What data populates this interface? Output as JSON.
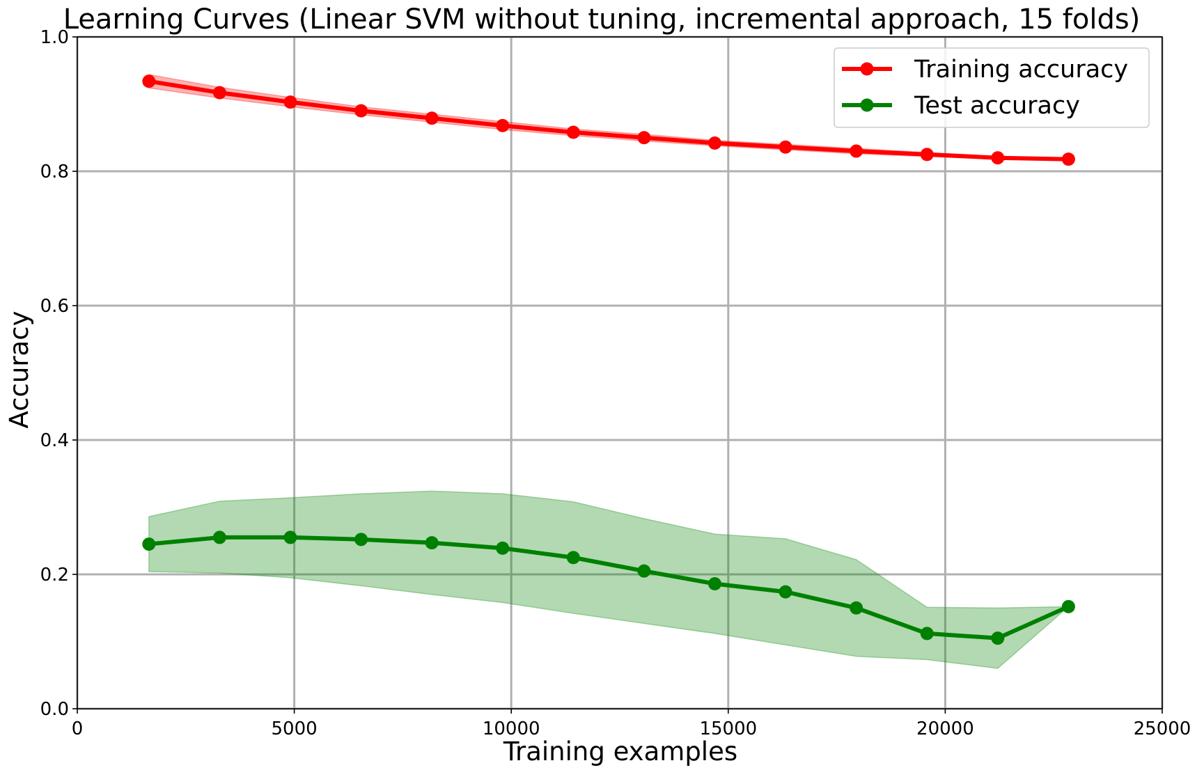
{
  "chart_data": {
    "type": "line",
    "title": "Learning Curves (Linear SVM without tuning, incremental approach, 15 folds)",
    "xlabel": "Training examples",
    "ylabel": "Accuracy",
    "xlim": [
      0,
      25000
    ],
    "ylim": [
      0.0,
      1.0
    ],
    "xticks": [
      0,
      5000,
      10000,
      15000,
      20000,
      25000
    ],
    "yticks": [
      0.0,
      0.2,
      0.4,
      0.6,
      0.8,
      1.0
    ],
    "xtick_labels": [
      "0",
      "5000",
      "10000",
      "15000",
      "20000",
      "25000"
    ],
    "ytick_labels": [
      "0.0",
      "0.2",
      "0.4",
      "0.6",
      "0.8",
      "1.0"
    ],
    "grid": true,
    "legend_position": "top-right",
    "x": [
      1650,
      3280,
      4910,
      6540,
      8170,
      9800,
      11430,
      13060,
      14690,
      16320,
      17950,
      19580,
      21210,
      22840
    ],
    "series": [
      {
        "name": "Training accuracy",
        "color": "#ff0000",
        "band_color": "#ff0000",
        "values": [
          0.934,
          0.917,
          0.903,
          0.89,
          0.879,
          0.868,
          0.858,
          0.85,
          0.842,
          0.836,
          0.83,
          0.825,
          0.82,
          0.818
        ],
        "lower": [
          0.924,
          0.909,
          0.896,
          0.884,
          0.873,
          0.862,
          0.853,
          0.845,
          0.838,
          0.832,
          0.826,
          0.822,
          0.818,
          0.816
        ],
        "upper": [
          0.944,
          0.925,
          0.91,
          0.896,
          0.885,
          0.874,
          0.863,
          0.855,
          0.846,
          0.84,
          0.834,
          0.828,
          0.822,
          0.82
        ]
      },
      {
        "name": "Test accuracy",
        "color": "#008000",
        "band_color": "#008000",
        "values": [
          0.245,
          0.255,
          0.255,
          0.252,
          0.247,
          0.239,
          0.225,
          0.205,
          0.186,
          0.174,
          0.15,
          0.112,
          0.105,
          0.152
        ],
        "lower": [
          0.204,
          0.202,
          0.195,
          0.183,
          0.17,
          0.158,
          0.142,
          0.127,
          0.112,
          0.095,
          0.078,
          0.073,
          0.06,
          0.152
        ],
        "upper": [
          0.286,
          0.309,
          0.314,
          0.32,
          0.324,
          0.32,
          0.308,
          0.283,
          0.26,
          0.253,
          0.222,
          0.151,
          0.15,
          0.152
        ]
      }
    ]
  }
}
